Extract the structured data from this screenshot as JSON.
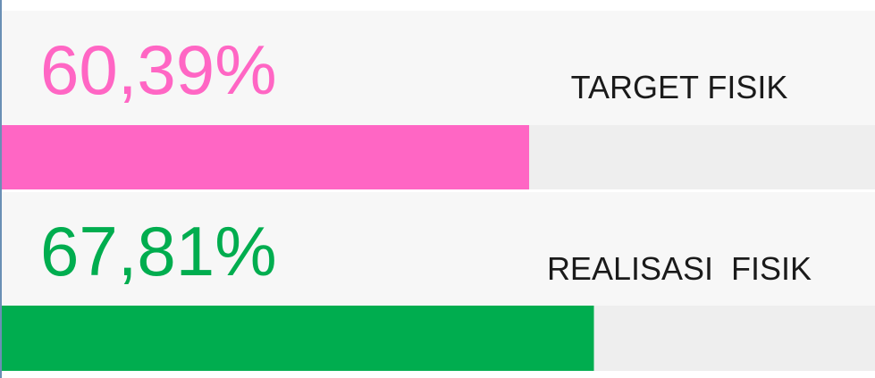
{
  "chart_data": {
    "type": "progress",
    "categories": [
      "TARGET FISIK",
      "REALISASI  FISIK"
    ],
    "values": [
      60.39,
      67.81
    ],
    "value_labels": [
      "60,39%",
      "67,81%"
    ],
    "colors": [
      "#ff66c4",
      "#00ad4f"
    ],
    "xlim": [
      0,
      100
    ]
  }
}
